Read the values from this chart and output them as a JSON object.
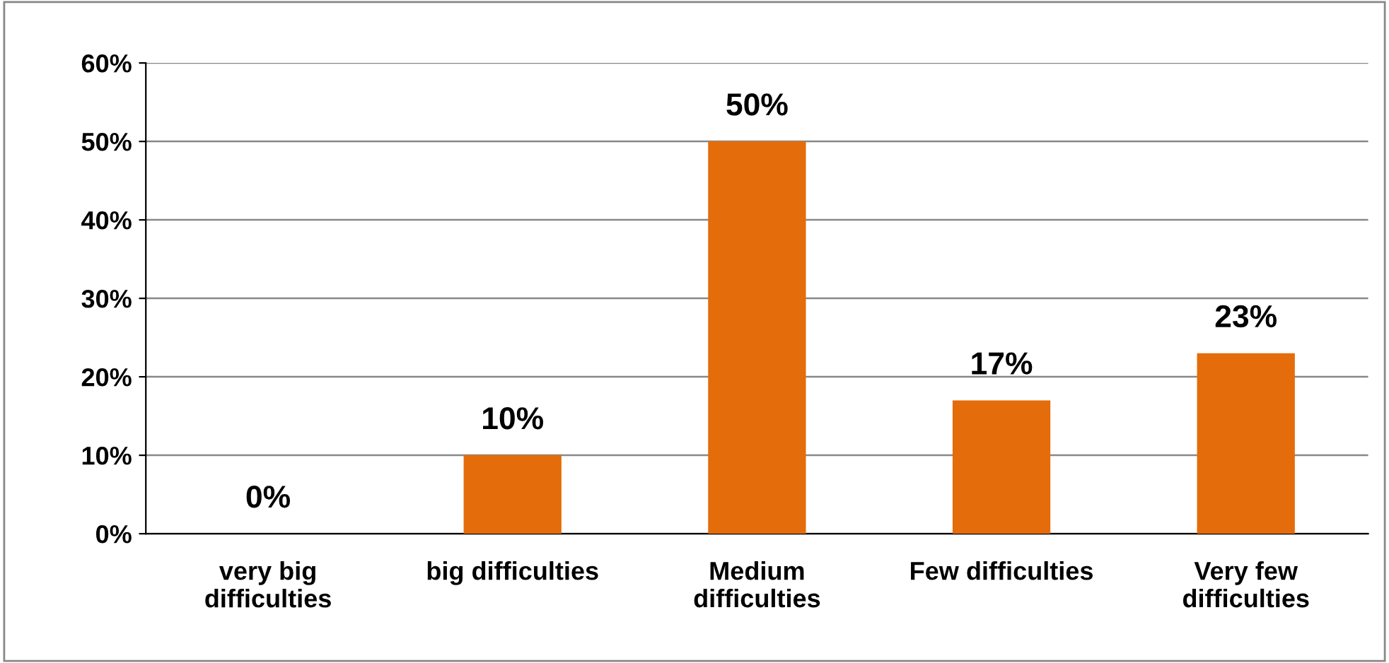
{
  "chart_data": {
    "type": "bar",
    "categories": [
      "very big\ndifficulties",
      "big difficulties",
      "Medium\ndifficulties",
      "Few difficulties",
      "Very few\ndifficulties"
    ],
    "values": [
      0,
      10,
      50,
      17,
      23
    ],
    "value_labels": [
      "0%",
      "10%",
      "50%",
      "17%",
      "23%"
    ],
    "color": "#e46c0a",
    "ylim": [
      0,
      60
    ],
    "yticks": [
      {
        "value": 0,
        "label": "0%"
      },
      {
        "value": 10,
        "label": "10%"
      },
      {
        "value": 20,
        "label": "20%"
      },
      {
        "value": 30,
        "label": "30%"
      },
      {
        "value": 40,
        "label": "40%"
      },
      {
        "value": 50,
        "label": "50%"
      },
      {
        "value": 60,
        "label": "60%"
      }
    ],
    "grid": "y"
  }
}
